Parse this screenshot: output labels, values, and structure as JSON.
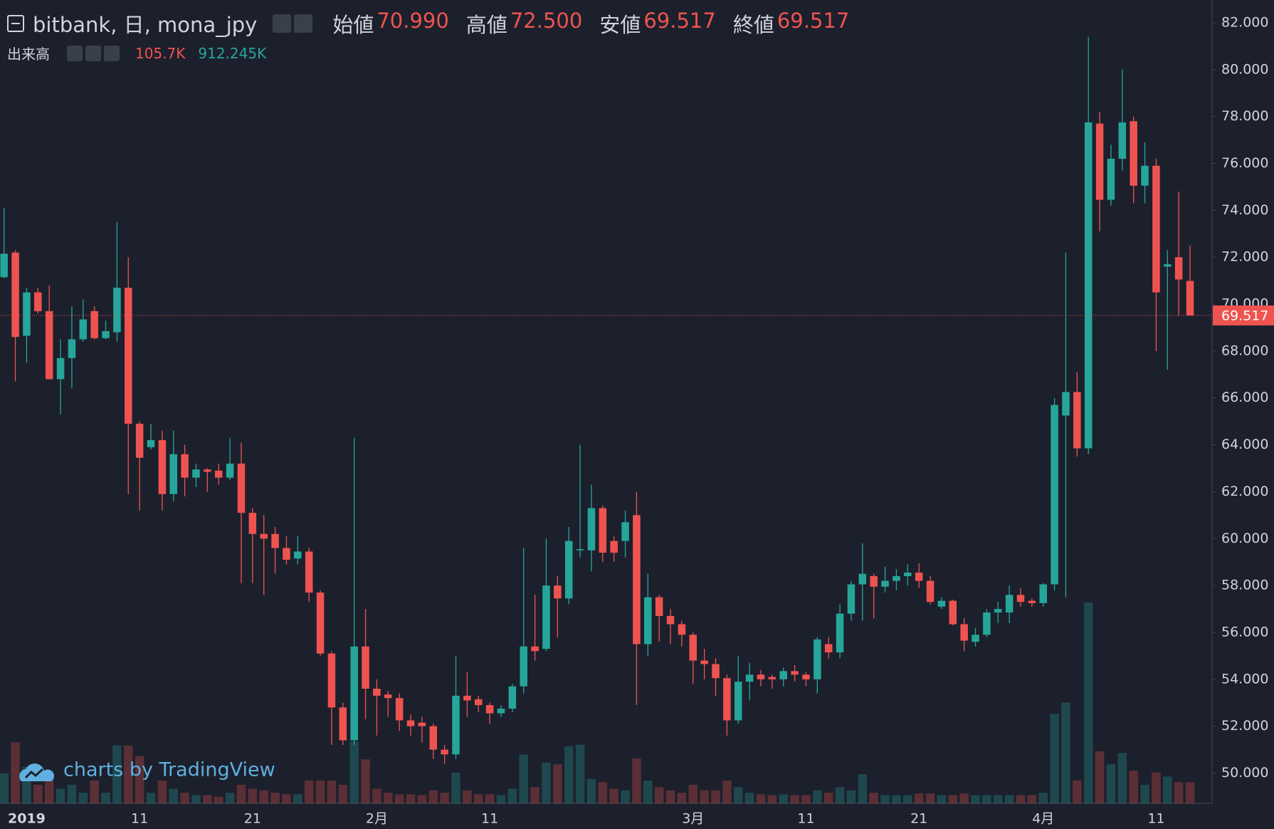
{
  "chart_data": {
    "type": "candlestick",
    "title": "bitbank, 日, mona_jpy",
    "legend": [
      {
        "name": "始値",
        "value": "70.990"
      },
      {
        "name": "高値",
        "value": "72.500"
      },
      {
        "name": "安値",
        "value": "69.517"
      },
      {
        "name": "終値",
        "value": "69.517"
      }
    ],
    "volume_legend": {
      "name": "出来高",
      "values": [
        "105.7K",
        "912.245K"
      ]
    },
    "watermark": "charts by TradingView",
    "up_color": "#26a69a",
    "down_color": "#ef5350",
    "categories": [
      null,
      null,
      "2019",
      null,
      null,
      null,
      null,
      null,
      null,
      null,
      null,
      null,
      "11",
      null,
      null,
      null,
      null,
      null,
      null,
      null,
      null,
      null,
      "21",
      null,
      null,
      null,
      null,
      null,
      null,
      null,
      null,
      null,
      null,
      "2月",
      null,
      null,
      null,
      null,
      null,
      null,
      null,
      null,
      null,
      "11",
      null,
      null,
      null,
      null,
      null,
      null,
      null,
      null,
      null,
      null,
      null,
      null,
      null,
      null,
      null,
      null,
      null,
      "3月",
      null,
      null,
      null,
      null,
      null,
      null,
      null,
      null,
      null,
      "11",
      null,
      null,
      null,
      null,
      null,
      null,
      null,
      null,
      null,
      "21",
      null,
      null,
      null,
      null,
      null,
      null,
      null,
      null,
      null,
      null,
      "4月",
      null,
      null,
      null,
      null,
      null,
      null,
      null,
      null,
      null,
      "11",
      null,
      null,
      null
    ],
    "open": [
      71.15,
      72.2,
      68.65,
      70.5,
      69.7,
      66.8,
      67.7,
      68.5,
      69.7,
      68.55,
      68.8,
      70.7,
      64.9,
      63.9,
      64.2,
      61.9,
      63.6,
      62.6,
      62.95,
      62.9,
      62.6,
      63.2,
      61.1,
      60.2,
      60.2,
      59.6,
      59.15,
      59.45,
      57.7,
      55.1,
      52.8,
      51.4,
      55.4,
      53.6,
      53.35,
      53.2,
      52.25,
      52.15,
      52.0,
      51.0,
      50.8,
      53.3,
      53.15,
      52.9,
      52.55,
      52.75,
      53.7,
      55.4,
      55.3,
      58.0,
      57.45,
      59.5,
      59.5,
      61.3,
      59.9,
      59.9,
      61.0,
      55.5,
      57.5,
      56.7,
      56.35,
      55.9,
      54.8,
      54.65,
      54.05,
      52.25,
      53.9,
      54.2,
      54.1,
      54.0,
      54.35,
      54.2,
      54.0,
      55.5,
      55.15,
      56.8,
      58.05,
      58.4,
      57.95,
      58.2,
      58.4,
      58.55,
      58.2,
      57.1,
      57.35,
      56.35,
      55.6,
      55.9,
      56.85,
      56.85,
      57.6,
      57.35,
      57.25,
      58.05,
      65.25,
      66.25,
      63.85,
      77.7,
      74.45,
      76.2,
      77.8,
      75.05,
      75.9,
      71.6,
      72.0,
      70.99
    ],
    "high": [
      74.1,
      72.3,
      70.7,
      70.7,
      70.8,
      68.5,
      69.9,
      70.2,
      69.9,
      69.3,
      73.5,
      72.0,
      65.0,
      64.9,
      64.6,
      64.6,
      64.0,
      63.2,
      63.0,
      63.2,
      64.3,
      64.1,
      61.3,
      61.0,
      60.5,
      60.1,
      60.1,
      59.6,
      57.8,
      55.2,
      53.0,
      64.3,
      57.0,
      54.0,
      53.5,
      53.4,
      52.5,
      52.4,
      52.1,
      51.2,
      55.0,
      54.3,
      53.3,
      53.0,
      52.9,
      53.8,
      59.6,
      57.6,
      60.0,
      58.4,
      60.5,
      64.0,
      62.3,
      61.4,
      60.1,
      61.2,
      62.0,
      58.5,
      57.6,
      57.0,
      56.5,
      56.0,
      55.3,
      54.9,
      54.2,
      55.0,
      54.7,
      54.4,
      54.2,
      54.5,
      54.6,
      54.3,
      55.8,
      55.8,
      57.2,
      58.2,
      59.8,
      58.5,
      58.8,
      58.7,
      58.9,
      58.95,
      58.4,
      57.5,
      57.4,
      56.6,
      56.2,
      57.0,
      57.3,
      58.0,
      57.9,
      57.45,
      58.1,
      66.0,
      72.2,
      67.1,
      81.4,
      78.2,
      76.8,
      80.0,
      78.0,
      76.9,
      76.2,
      72.3,
      74.8,
      72.5
    ],
    "low": [
      71.1,
      66.7,
      67.5,
      69.6,
      66.8,
      65.3,
      66.4,
      68.4,
      68.5,
      68.5,
      68.4,
      61.9,
      61.2,
      63.8,
      61.2,
      61.6,
      61.8,
      62.2,
      62.0,
      62.3,
      62.5,
      58.1,
      58.1,
      57.6,
      58.5,
      58.9,
      58.9,
      57.3,
      55.0,
      51.2,
      51.2,
      51.2,
      52.3,
      51.6,
      52.4,
      51.8,
      51.6,
      51.3,
      50.6,
      50.4,
      50.6,
      52.4,
      52.6,
      52.1,
      52.4,
      52.6,
      53.4,
      54.8,
      55.2,
      55.8,
      57.2,
      59.2,
      58.6,
      59.0,
      59.0,
      59.2,
      52.9,
      55.0,
      55.6,
      55.5,
      55.4,
      53.8,
      54.0,
      53.3,
      51.6,
      52.1,
      53.1,
      53.7,
      53.6,
      53.7,
      53.9,
      53.7,
      53.4,
      54.9,
      54.9,
      56.5,
      56.5,
      56.6,
      57.7,
      57.8,
      58.0,
      57.9,
      57.2,
      57.0,
      56.3,
      55.2,
      55.4,
      55.8,
      56.4,
      56.4,
      57.1,
      57.1,
      57.1,
      57.8,
      57.5,
      63.5,
      63.6,
      73.1,
      74.2,
      75.7,
      74.3,
      74.3,
      68.0,
      67.2,
      69.5,
      69.517
    ],
    "close": [
      72.15,
      68.6,
      70.5,
      69.7,
      66.8,
      67.7,
      68.5,
      69.35,
      68.55,
      68.85,
      70.7,
      64.9,
      63.45,
      64.2,
      61.9,
      63.6,
      62.6,
      62.95,
      62.85,
      62.6,
      63.2,
      61.1,
      60.2,
      60.0,
      59.6,
      59.1,
      59.45,
      57.7,
      55.1,
      52.8,
      51.4,
      55.4,
      53.6,
      53.3,
      53.2,
      52.25,
      52.0,
      52.0,
      51.0,
      50.8,
      53.3,
      53.1,
      52.9,
      52.55,
      52.75,
      53.7,
      55.4,
      55.2,
      58.0,
      57.45,
      59.9,
      59.55,
      61.3,
      59.4,
      59.4,
      60.7,
      55.5,
      57.5,
      56.7,
      56.35,
      55.9,
      54.8,
      54.65,
      54.05,
      52.25,
      53.9,
      54.2,
      54.0,
      54.0,
      54.35,
      54.2,
      54.0,
      55.7,
      55.15,
      56.8,
      58.05,
      58.5,
      57.95,
      58.2,
      58.4,
      58.55,
      58.2,
      57.3,
      57.35,
      56.35,
      55.65,
      55.9,
      56.85,
      57.0,
      57.6,
      57.3,
      57.25,
      58.05,
      65.7,
      66.25,
      63.85,
      77.75,
      74.45,
      76.2,
      77.75,
      75.05,
      75.9,
      70.5,
      71.7,
      71.05,
      69.517
    ],
    "volume": [
      150000,
      305000,
      183000,
      93000,
      142000,
      73000,
      93000,
      53000,
      114000,
      53000,
      289000,
      289000,
      236000,
      53000,
      114000,
      73000,
      53000,
      41000,
      41000,
      33000,
      53000,
      93000,
      73000,
      65000,
      53000,
      45000,
      45000,
      114000,
      114000,
      114000,
      93000,
      309000,
      220000,
      73000,
      53000,
      45000,
      45000,
      41000,
      65000,
      53000,
      154000,
      65000,
      45000,
      45000,
      41000,
      73000,
      244000,
      81000,
      203000,
      195000,
      285000,
      293000,
      122000,
      106000,
      73000,
      65000,
      224000,
      114000,
      81000,
      65000,
      53000,
      93000,
      65000,
      65000,
      114000,
      81000,
      53000,
      45000,
      41000,
      45000,
      41000,
      41000,
      65000,
      53000,
      81000,
      65000,
      146000,
      53000,
      41000,
      41000,
      41000,
      49000,
      49000,
      41000,
      41000,
      49000,
      41000,
      41000,
      41000,
      41000,
      41000,
      41000,
      53000,
      447000,
      504000,
      114000,
      1004000,
      260000,
      195000,
      252000,
      163000,
      93000,
      154000,
      134000,
      106000,
      105700
    ],
    "ylim": [
      48.71,
      82.97
    ],
    "yticks": [
      {
        "value": 50,
        "label": "50.000"
      },
      {
        "value": 52,
        "label": "52.000"
      },
      {
        "value": 54,
        "label": "54.000"
      },
      {
        "value": 56,
        "label": "56.000"
      },
      {
        "value": 58,
        "label": "58.000"
      },
      {
        "value": 60,
        "label": "60.000"
      },
      {
        "value": 62,
        "label": "62.000"
      },
      {
        "value": 64,
        "label": "64.000"
      },
      {
        "value": 66,
        "label": "66.000"
      },
      {
        "value": 68,
        "label": "68.000"
      },
      {
        "value": 70,
        "label": "70.000"
      },
      {
        "value": 72,
        "label": "72.000"
      },
      {
        "value": 74,
        "label": "74.000"
      },
      {
        "value": 76,
        "label": "76.000"
      },
      {
        "value": 78,
        "label": "78.000"
      },
      {
        "value": 80,
        "label": "80.000"
      },
      {
        "value": 82,
        "label": "82.000"
      }
    ],
    "price_line": {
      "value": 69.517,
      "label": "69.517"
    }
  }
}
